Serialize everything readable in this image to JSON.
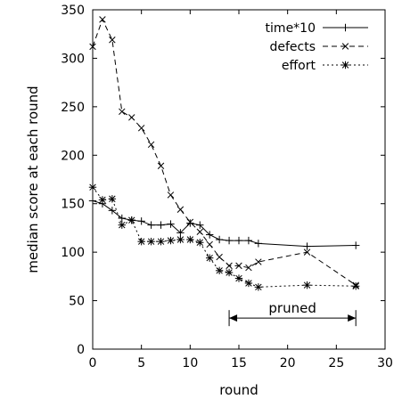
{
  "chart_data": {
    "type": "line",
    "title": "",
    "xlabel": "round",
    "ylabel": "median score at each round",
    "xlim": [
      0,
      30
    ],
    "ylim": [
      0,
      350
    ],
    "xticks": [
      0,
      5,
      10,
      15,
      20,
      25,
      30
    ],
    "yticks": [
      0,
      50,
      100,
      150,
      200,
      250,
      300,
      350
    ],
    "grid": false,
    "legend_position": "top-right",
    "series": [
      {
        "name": "time*10",
        "marker": "plus",
        "line_style": "solid",
        "x": [
          0,
          1,
          2,
          3,
          4,
          5,
          6,
          7,
          8,
          9,
          10,
          11,
          12,
          13,
          14,
          15,
          16,
          17,
          22,
          27
        ],
        "y": [
          153,
          150,
          143,
          135,
          133,
          132,
          128,
          128,
          129,
          120,
          130,
          128,
          118,
          113,
          112,
          112,
          112,
          109,
          106,
          107
        ]
      },
      {
        "name": "defects",
        "marker": "x",
        "line_style": "dashed",
        "x": [
          0,
          1,
          2,
          3,
          4,
          5,
          6,
          7,
          8,
          9,
          10,
          11,
          12,
          13,
          14,
          15,
          16,
          17,
          22,
          27
        ],
        "y": [
          312,
          340,
          319,
          245,
          239,
          228,
          211,
          189,
          159,
          144,
          131,
          121,
          108,
          95,
          86,
          86,
          84,
          90,
          100,
          66
        ]
      },
      {
        "name": "effort",
        "marker": "star",
        "line_style": "dotted",
        "x": [
          0,
          1,
          2,
          3,
          4,
          5,
          6,
          7,
          8,
          9,
          10,
          11,
          12,
          13,
          14,
          15,
          16,
          17,
          22,
          27
        ],
        "y": [
          167,
          154,
          155,
          128,
          133,
          111,
          111,
          111,
          112,
          113,
          113,
          110,
          94,
          81,
          79,
          73,
          68,
          64,
          66,
          65
        ]
      }
    ],
    "annotations": [
      {
        "text": "pruned",
        "type": "range-arrow",
        "x_start": 14,
        "x_end": 27,
        "y": 32
      }
    ]
  }
}
